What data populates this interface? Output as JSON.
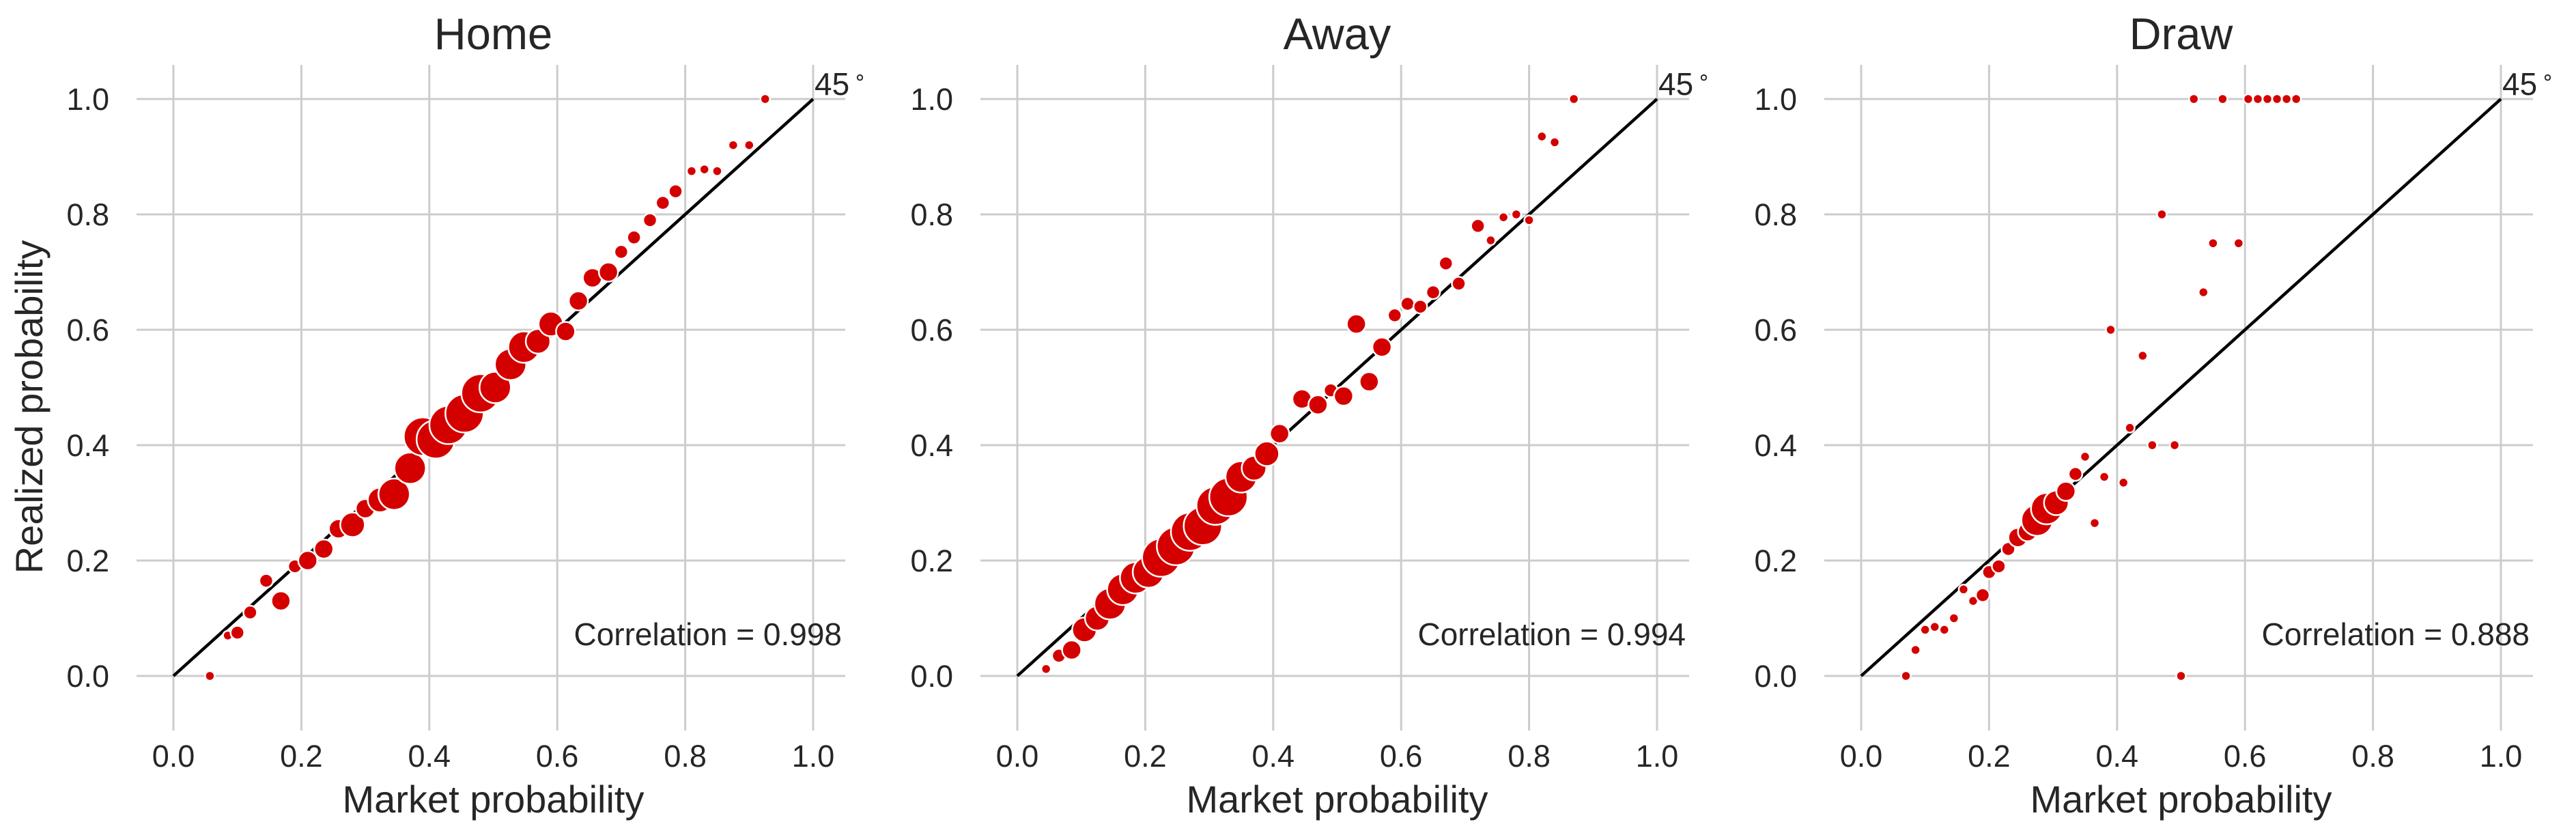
{
  "figure": {
    "ylabel": "Realized probability",
    "accent_color": "#d40000"
  },
  "chart_data": [
    {
      "type": "scatter",
      "title": "Home",
      "xlabel": "Market probability",
      "ylabel": "Realized probability",
      "xlim": [
        -0.06,
        1.05
      ],
      "ylim": [
        -0.08,
        1.06
      ],
      "x_ticks": [
        "0.0",
        "0.2",
        "0.4",
        "0.6",
        "0.8",
        "1.0"
      ],
      "y_ticks": [
        "0.0",
        "0.2",
        "0.4",
        "0.6",
        "0.8",
        "1.0"
      ],
      "grid": true,
      "reference_line": {
        "from": [
          0,
          0
        ],
        "to": [
          1,
          1
        ],
        "label": "45$^\\circ$",
        "label_text": "45",
        "label_sup": "∘"
      },
      "annotation": "Correlation = 0.998",
      "marker_color": "#d40000",
      "points": [
        {
          "x": 0.057,
          "y": 0.0,
          "s": 1
        },
        {
          "x": 0.085,
          "y": 0.07,
          "s": 1
        },
        {
          "x": 0.1,
          "y": 0.075,
          "s": 2
        },
        {
          "x": 0.12,
          "y": 0.11,
          "s": 2
        },
        {
          "x": 0.145,
          "y": 0.165,
          "s": 2
        },
        {
          "x": 0.168,
          "y": 0.13,
          "s": 3
        },
        {
          "x": 0.19,
          "y": 0.19,
          "s": 2
        },
        {
          "x": 0.21,
          "y": 0.2,
          "s": 3
        },
        {
          "x": 0.235,
          "y": 0.22,
          "s": 3
        },
        {
          "x": 0.258,
          "y": 0.255,
          "s": 3
        },
        {
          "x": 0.28,
          "y": 0.262,
          "s": 4
        },
        {
          "x": 0.3,
          "y": 0.29,
          "s": 3
        },
        {
          "x": 0.323,
          "y": 0.305,
          "s": 4
        },
        {
          "x": 0.345,
          "y": 0.315,
          "s": 5
        },
        {
          "x": 0.37,
          "y": 0.36,
          "s": 5
        },
        {
          "x": 0.39,
          "y": 0.415,
          "s": 6
        },
        {
          "x": 0.41,
          "y": 0.41,
          "s": 6
        },
        {
          "x": 0.43,
          "y": 0.435,
          "s": 6
        },
        {
          "x": 0.455,
          "y": 0.455,
          "s": 6
        },
        {
          "x": 0.48,
          "y": 0.49,
          "s": 6
        },
        {
          "x": 0.503,
          "y": 0.5,
          "s": 5
        },
        {
          "x": 0.527,
          "y": 0.54,
          "s": 5
        },
        {
          "x": 0.548,
          "y": 0.57,
          "s": 5
        },
        {
          "x": 0.57,
          "y": 0.58,
          "s": 4
        },
        {
          "x": 0.59,
          "y": 0.61,
          "s": 4
        },
        {
          "x": 0.613,
          "y": 0.597,
          "s": 3
        },
        {
          "x": 0.633,
          "y": 0.65,
          "s": 3
        },
        {
          "x": 0.655,
          "y": 0.69,
          "s": 3
        },
        {
          "x": 0.68,
          "y": 0.7,
          "s": 3
        },
        {
          "x": 0.7,
          "y": 0.735,
          "s": 2
        },
        {
          "x": 0.72,
          "y": 0.76,
          "s": 2
        },
        {
          "x": 0.745,
          "y": 0.79,
          "s": 2
        },
        {
          "x": 0.765,
          "y": 0.82,
          "s": 2
        },
        {
          "x": 0.785,
          "y": 0.84,
          "s": 2
        },
        {
          "x": 0.81,
          "y": 0.875,
          "s": 1
        },
        {
          "x": 0.83,
          "y": 0.878,
          "s": 1
        },
        {
          "x": 0.85,
          "y": 0.875,
          "s": 1
        },
        {
          "x": 0.875,
          "y": 0.92,
          "s": 1
        },
        {
          "x": 0.9,
          "y": 0.92,
          "s": 1
        },
        {
          "x": 0.925,
          "y": 1.0,
          "s": 1
        }
      ]
    },
    {
      "type": "scatter",
      "title": "Away",
      "xlabel": "Market probability",
      "ylabel": "",
      "xlim": [
        -0.06,
        1.05
      ],
      "ylim": [
        -0.08,
        1.06
      ],
      "x_ticks": [
        "0.0",
        "0.2",
        "0.4",
        "0.6",
        "0.8",
        "1.0"
      ],
      "y_ticks": [
        "0.0",
        "0.2",
        "0.4",
        "0.6",
        "0.8",
        "1.0"
      ],
      "grid": true,
      "reference_line": {
        "from": [
          0,
          0
        ],
        "to": [
          1,
          1
        ],
        "label_text": "45",
        "label_sup": "∘"
      },
      "annotation": "Correlation = 0.994",
      "marker_color": "#d40000",
      "points": [
        {
          "x": 0.045,
          "y": 0.012,
          "s": 1
        },
        {
          "x": 0.065,
          "y": 0.035,
          "s": 2
        },
        {
          "x": 0.085,
          "y": 0.045,
          "s": 3
        },
        {
          "x": 0.105,
          "y": 0.08,
          "s": 4
        },
        {
          "x": 0.125,
          "y": 0.1,
          "s": 4
        },
        {
          "x": 0.145,
          "y": 0.125,
          "s": 5
        },
        {
          "x": 0.165,
          "y": 0.15,
          "s": 5
        },
        {
          "x": 0.185,
          "y": 0.17,
          "s": 5
        },
        {
          "x": 0.205,
          "y": 0.18,
          "s": 5
        },
        {
          "x": 0.225,
          "y": 0.205,
          "s": 6
        },
        {
          "x": 0.248,
          "y": 0.225,
          "s": 6
        },
        {
          "x": 0.27,
          "y": 0.25,
          "s": 6
        },
        {
          "x": 0.29,
          "y": 0.26,
          "s": 6
        },
        {
          "x": 0.31,
          "y": 0.295,
          "s": 6
        },
        {
          "x": 0.33,
          "y": 0.31,
          "s": 6
        },
        {
          "x": 0.35,
          "y": 0.345,
          "s": 5
        },
        {
          "x": 0.37,
          "y": 0.36,
          "s": 4
        },
        {
          "x": 0.39,
          "y": 0.385,
          "s": 4
        },
        {
          "x": 0.41,
          "y": 0.42,
          "s": 3
        },
        {
          "x": 0.445,
          "y": 0.48,
          "s": 3
        },
        {
          "x": 0.47,
          "y": 0.47,
          "s": 3
        },
        {
          "x": 0.49,
          "y": 0.495,
          "s": 2
        },
        {
          "x": 0.51,
          "y": 0.485,
          "s": 3
        },
        {
          "x": 0.53,
          "y": 0.61,
          "s": 3
        },
        {
          "x": 0.55,
          "y": 0.51,
          "s": 3
        },
        {
          "x": 0.57,
          "y": 0.57,
          "s": 3
        },
        {
          "x": 0.59,
          "y": 0.625,
          "s": 2
        },
        {
          "x": 0.61,
          "y": 0.645,
          "s": 2
        },
        {
          "x": 0.63,
          "y": 0.64,
          "s": 2
        },
        {
          "x": 0.65,
          "y": 0.665,
          "s": 2
        },
        {
          "x": 0.67,
          "y": 0.715,
          "s": 2
        },
        {
          "x": 0.69,
          "y": 0.68,
          "s": 2
        },
        {
          "x": 0.72,
          "y": 0.78,
          "s": 2
        },
        {
          "x": 0.74,
          "y": 0.755,
          "s": 1
        },
        {
          "x": 0.76,
          "y": 0.795,
          "s": 1
        },
        {
          "x": 0.78,
          "y": 0.8,
          "s": 1
        },
        {
          "x": 0.8,
          "y": 0.79,
          "s": 1
        },
        {
          "x": 0.82,
          "y": 0.935,
          "s": 1
        },
        {
          "x": 0.84,
          "y": 0.925,
          "s": 1
        },
        {
          "x": 0.87,
          "y": 1.0,
          "s": 1
        }
      ]
    },
    {
      "type": "scatter",
      "title": "Draw",
      "xlabel": "Market probability",
      "ylabel": "",
      "xlim": [
        -0.06,
        1.05
      ],
      "ylim": [
        -0.08,
        1.06
      ],
      "x_ticks": [
        "0.0",
        "0.2",
        "0.4",
        "0.6",
        "0.8",
        "1.0"
      ],
      "y_ticks": [
        "0.0",
        "0.2",
        "0.4",
        "0.6",
        "0.8",
        "1.0"
      ],
      "grid": true,
      "reference_line": {
        "from": [
          0,
          0
        ],
        "to": [
          1,
          1
        ],
        "label_text": "45",
        "label_sup": "∘"
      },
      "annotation": "Correlation = 0.888",
      "marker_color": "#d40000",
      "points": [
        {
          "x": 0.07,
          "y": 0.0,
          "s": 1
        },
        {
          "x": 0.085,
          "y": 0.045,
          "s": 1
        },
        {
          "x": 0.1,
          "y": 0.08,
          "s": 1
        },
        {
          "x": 0.115,
          "y": 0.085,
          "s": 1
        },
        {
          "x": 0.13,
          "y": 0.08,
          "s": 1
        },
        {
          "x": 0.145,
          "y": 0.1,
          "s": 1
        },
        {
          "x": 0.16,
          "y": 0.15,
          "s": 1
        },
        {
          "x": 0.175,
          "y": 0.13,
          "s": 1
        },
        {
          "x": 0.19,
          "y": 0.14,
          "s": 2
        },
        {
          "x": 0.2,
          "y": 0.18,
          "s": 2
        },
        {
          "x": 0.215,
          "y": 0.19,
          "s": 2
        },
        {
          "x": 0.23,
          "y": 0.22,
          "s": 2
        },
        {
          "x": 0.245,
          "y": 0.24,
          "s": 3
        },
        {
          "x": 0.26,
          "y": 0.25,
          "s": 3
        },
        {
          "x": 0.275,
          "y": 0.27,
          "s": 5
        },
        {
          "x": 0.29,
          "y": 0.29,
          "s": 5
        },
        {
          "x": 0.305,
          "y": 0.3,
          "s": 4
        },
        {
          "x": 0.32,
          "y": 0.32,
          "s": 3
        },
        {
          "x": 0.335,
          "y": 0.35,
          "s": 2
        },
        {
          "x": 0.35,
          "y": 0.38,
          "s": 1
        },
        {
          "x": 0.365,
          "y": 0.265,
          "s": 1
        },
        {
          "x": 0.38,
          "y": 0.345,
          "s": 1
        },
        {
          "x": 0.39,
          "y": 0.6,
          "s": 1
        },
        {
          "x": 0.41,
          "y": 0.335,
          "s": 1
        },
        {
          "x": 0.42,
          "y": 0.43,
          "s": 1
        },
        {
          "x": 0.44,
          "y": 0.555,
          "s": 1
        },
        {
          "x": 0.455,
          "y": 0.4,
          "s": 1
        },
        {
          "x": 0.47,
          "y": 0.8,
          "s": 1
        },
        {
          "x": 0.49,
          "y": 0.4,
          "s": 1
        },
        {
          "x": 0.5,
          "y": 0.0,
          "s": 1
        },
        {
          "x": 0.52,
          "y": 1.0,
          "s": 1
        },
        {
          "x": 0.535,
          "y": 0.665,
          "s": 1
        },
        {
          "x": 0.55,
          "y": 0.75,
          "s": 1
        },
        {
          "x": 0.565,
          "y": 1.0,
          "s": 1
        },
        {
          "x": 0.59,
          "y": 0.75,
          "s": 1
        },
        {
          "x": 0.605,
          "y": 1.0,
          "s": 1
        },
        {
          "x": 0.62,
          "y": 1.0,
          "s": 1
        },
        {
          "x": 0.635,
          "y": 1.0,
          "s": 1
        },
        {
          "x": 0.65,
          "y": 1.0,
          "s": 1
        },
        {
          "x": 0.665,
          "y": 1.0,
          "s": 1
        },
        {
          "x": 0.68,
          "y": 1.0,
          "s": 1
        }
      ]
    }
  ]
}
